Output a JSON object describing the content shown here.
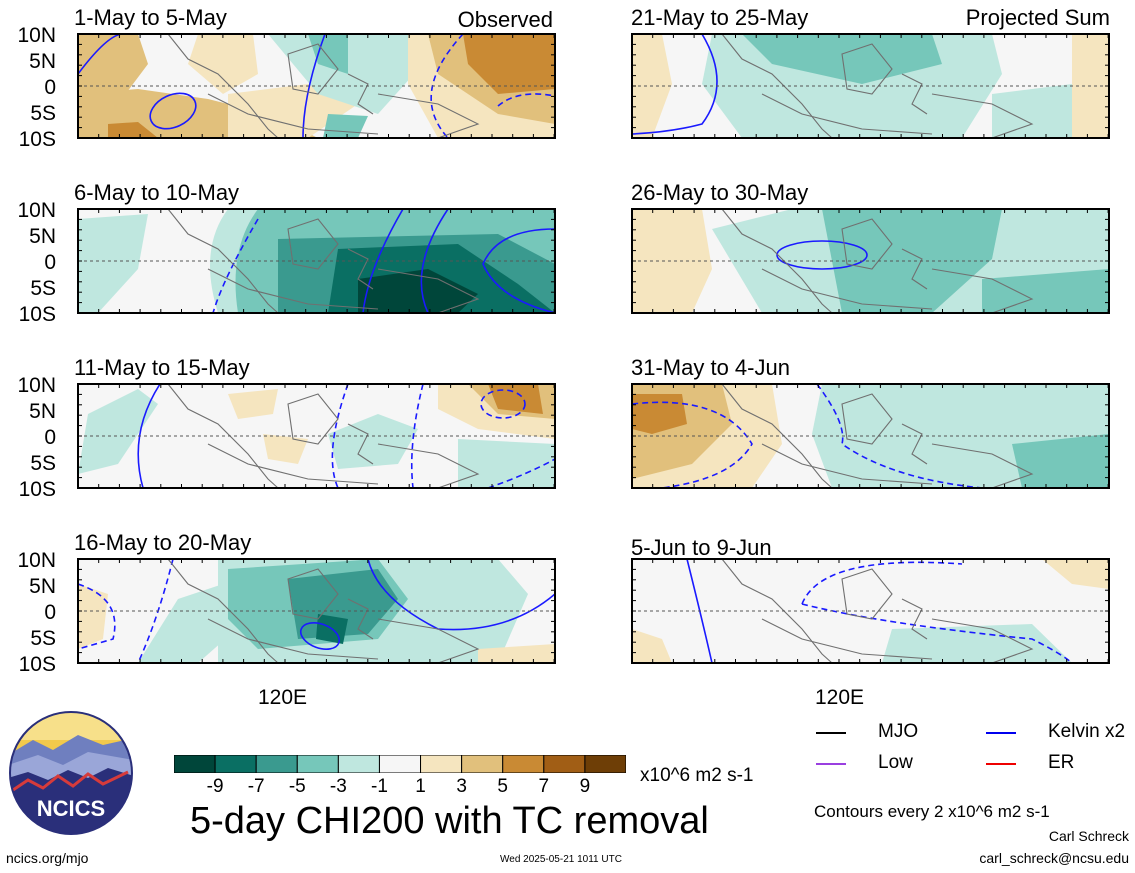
{
  "page": {
    "title": "5-day CHI200 with TC removal",
    "units": "x10^6 m2 s-1",
    "contour_note": "Contours every 2 x10^6 m2 s-1",
    "author": "Carl Schreck",
    "email": "carl_schreck@ncsu.edu",
    "site": "ncics.org/mjo",
    "timestamp": "Wed 2025-05-21 1011 UTC",
    "logo_text": "NCICS"
  },
  "axes": {
    "lat_labels": [
      "10N",
      "5N",
      "0",
      "5S",
      "10S"
    ],
    "lon_label": "120E"
  },
  "left_panels": [
    {
      "period": "1-May to 5-May",
      "label": "Observed"
    },
    {
      "period": "6-May to 10-May",
      "label": ""
    },
    {
      "period": "11-May to 15-May",
      "label": ""
    },
    {
      "period": "16-May to 20-May",
      "label": ""
    }
  ],
  "right_panels": [
    {
      "period": "21-May to 25-May",
      "label": "Projected Sum"
    },
    {
      "period": "26-May to 30-May",
      "label": ""
    },
    {
      "period": "31-May to 4-Jun",
      "label": ""
    },
    {
      "period": "5-Jun to 9-Jun",
      "label": ""
    }
  ],
  "colorbar": {
    "ticks": [
      "-9",
      "-7",
      "-5",
      "-3",
      "-1",
      "1",
      "3",
      "5",
      "7",
      "9"
    ],
    "colors": [
      "#00463a",
      "#0a6f63",
      "#3a9a8f",
      "#76c7ba",
      "#bfe7df",
      "#f6f6f6",
      "#f5e5bf",
      "#e1c07c",
      "#c98a34",
      "#a15e15",
      "#6e3e06"
    ]
  },
  "legend": [
    {
      "name": "MJO",
      "color": "#000000"
    },
    {
      "name": "Kelvin x2",
      "color": "#0000ee"
    },
    {
      "name": "Low",
      "color": "#9a3fe0"
    },
    {
      "name": "ER",
      "color": "#ee0000"
    }
  ],
  "colors": {
    "coast": "#707070",
    "contour": "#1a1aff",
    "equator": "#555555"
  }
}
